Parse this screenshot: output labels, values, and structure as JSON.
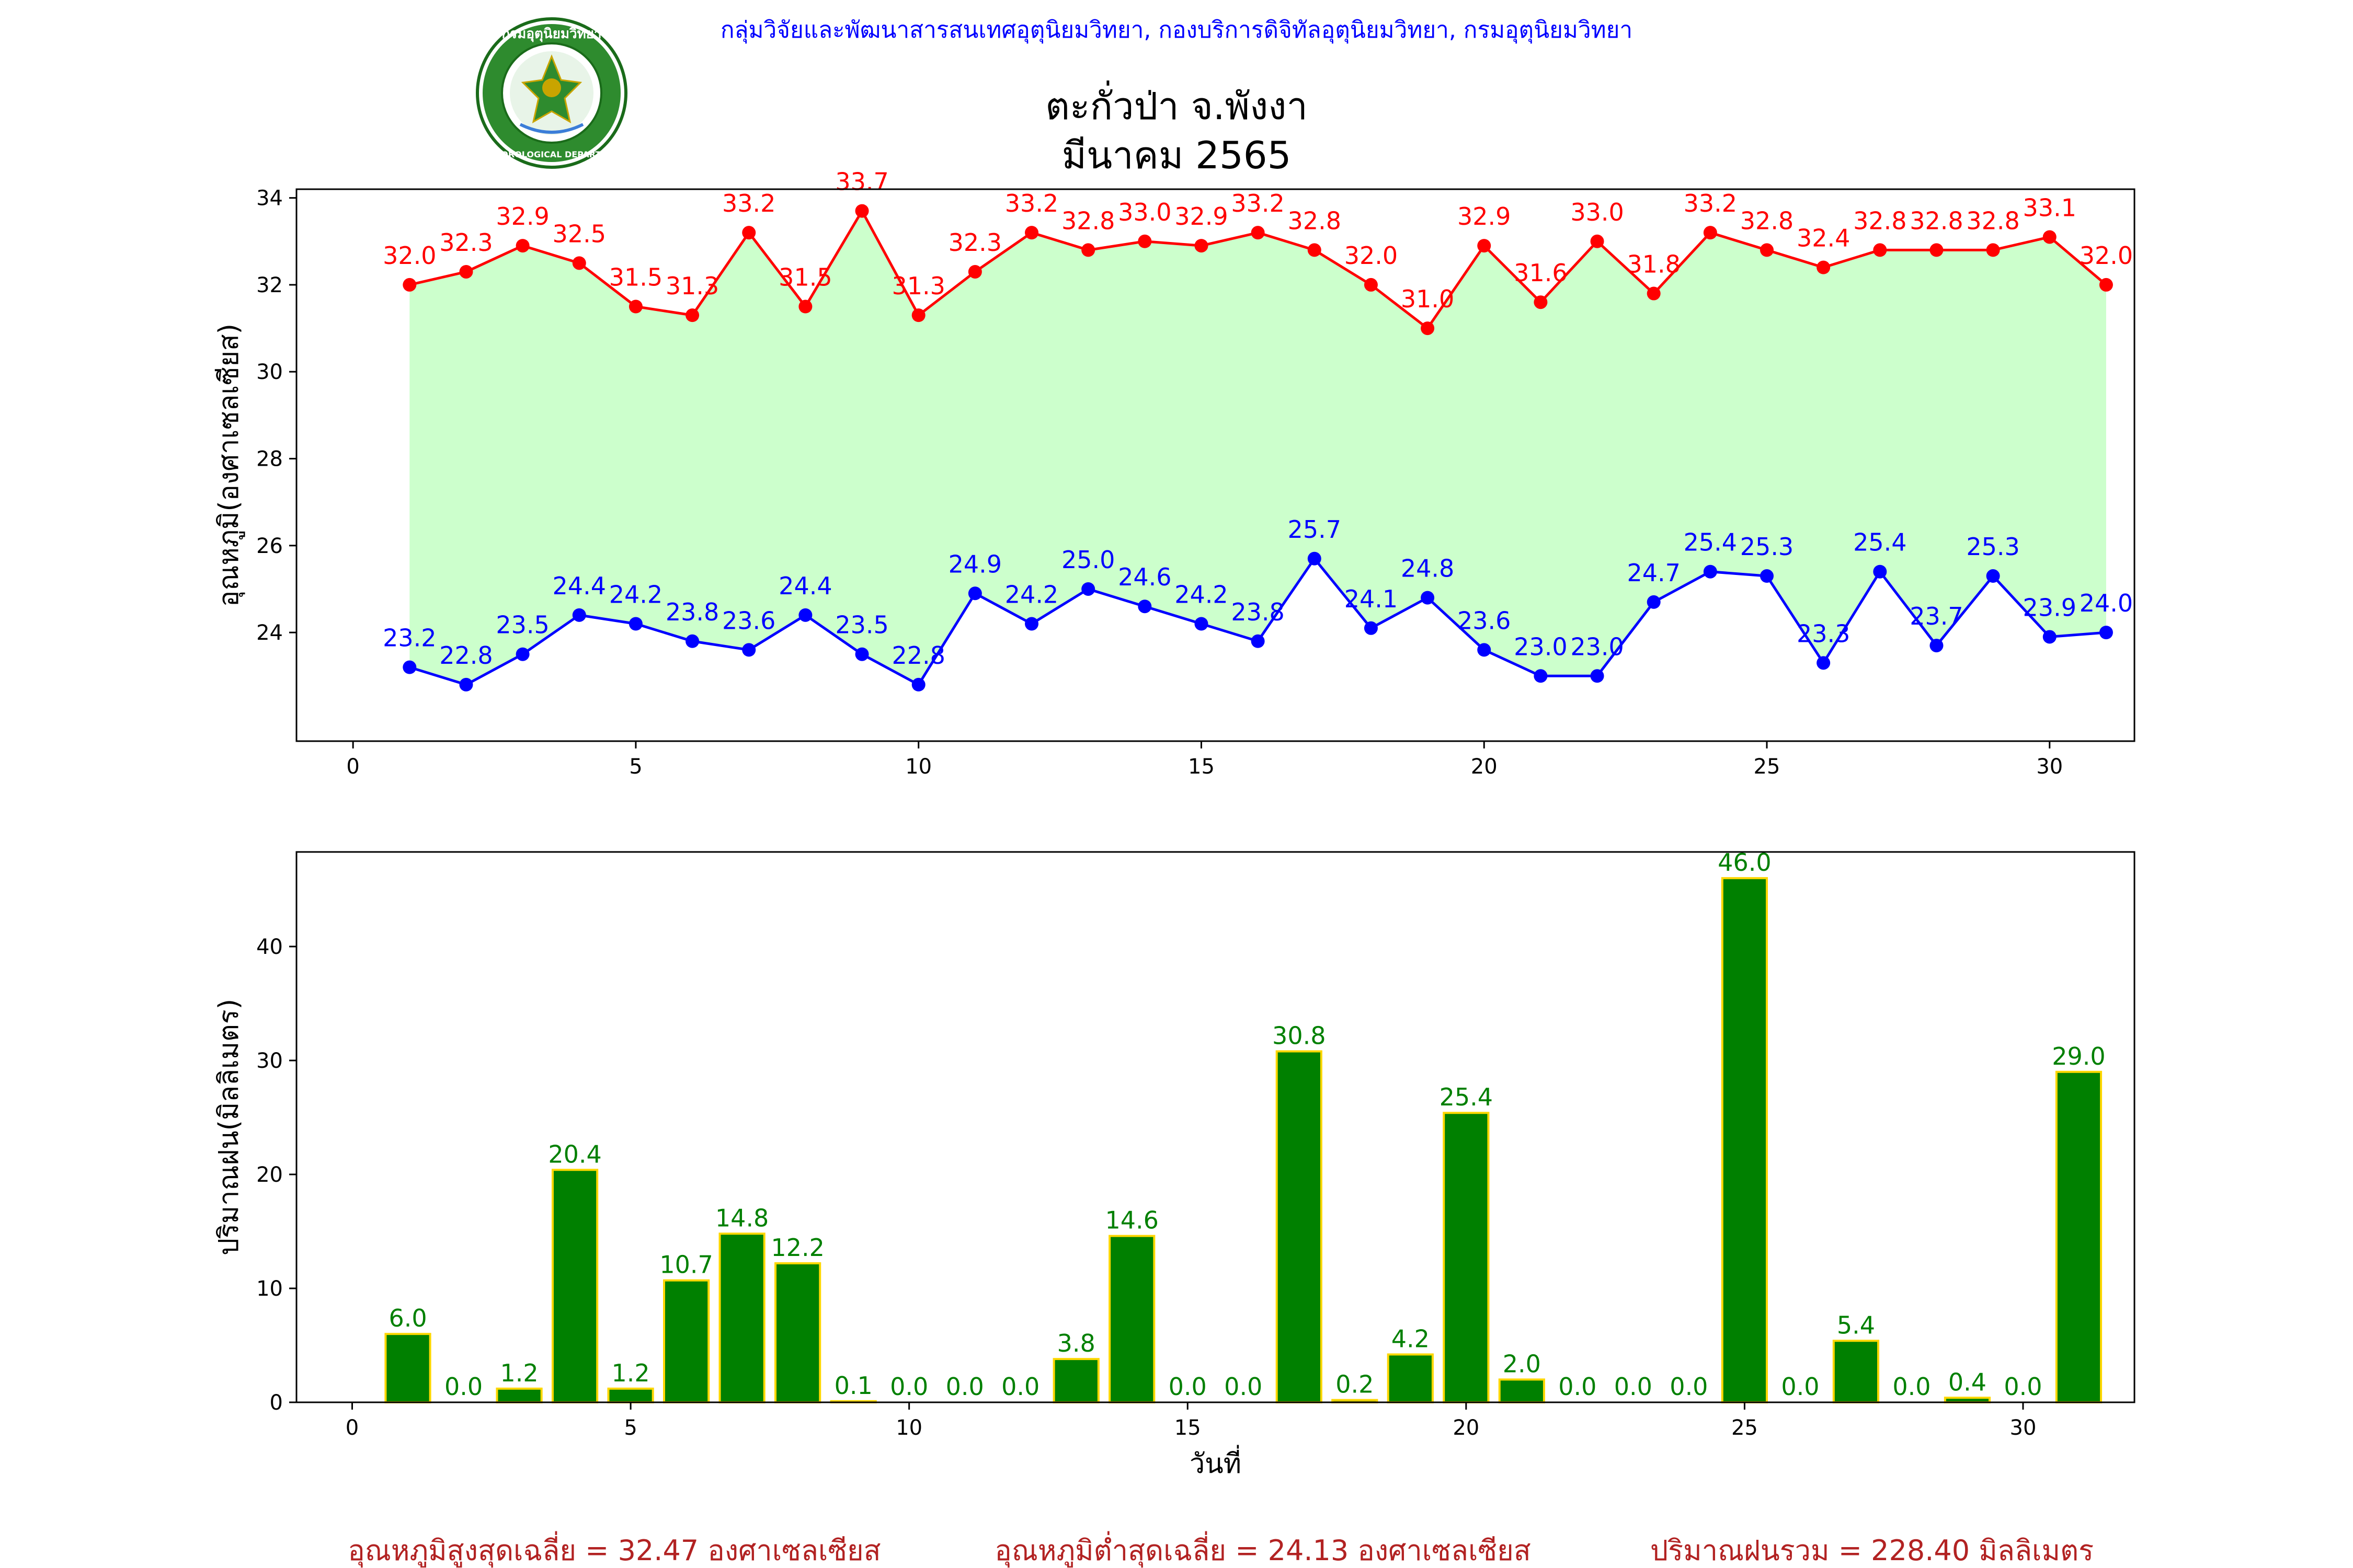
{
  "header": {
    "org_line": "กลุ่มวิจัยและพัฒนาสารสนเทศอุตุนิยมวิทยา, กองบริการดิจิทัลอุตุนิยมวิทยา, กรมอุตุนิยมวิทยา",
    "station": "ตะกั่วป่า จ.พังงา",
    "month": "มีนาคม 2565",
    "logo_top_text": "กรมอุตุนิยมวิทยา",
    "logo_bottom_text": "METEOROLOGICAL DEPARTMENT"
  },
  "chart_data": [
    {
      "type": "line",
      "ylabel": "อุณหภูมิ(องศาเซลเซียส)",
      "xlim": [
        -1,
        31.5
      ],
      "ylim": [
        21.5,
        34.2
      ],
      "xticks": [
        0,
        5,
        10,
        15,
        20,
        25,
        30
      ],
      "yticks": [
        24,
        26,
        28,
        30,
        32,
        34
      ],
      "fill_between_color": "#ccffcc",
      "x": [
        1,
        2,
        3,
        4,
        5,
        6,
        7,
        8,
        9,
        10,
        11,
        12,
        13,
        14,
        15,
        16,
        17,
        18,
        19,
        20,
        21,
        22,
        23,
        24,
        25,
        26,
        27,
        28,
        29,
        30,
        31
      ],
      "series": [
        {
          "key": "max",
          "color": "#ff0000",
          "values": [
            32.0,
            32.3,
            32.9,
            32.5,
            31.5,
            31.3,
            33.2,
            31.5,
            33.7,
            31.3,
            32.3,
            33.2,
            32.8,
            33.0,
            32.9,
            33.2,
            32.8,
            32.0,
            31.0,
            32.9,
            31.6,
            33.0,
            31.8,
            33.2,
            32.8,
            32.4,
            32.8,
            32.8,
            32.8,
            33.1,
            32.0
          ]
        },
        {
          "key": "min",
          "color": "#0000ff",
          "values": [
            23.2,
            22.8,
            23.5,
            24.4,
            24.2,
            23.8,
            23.6,
            24.4,
            23.5,
            22.8,
            24.9,
            24.2,
            25.0,
            24.6,
            24.2,
            23.8,
            25.7,
            24.1,
            24.8,
            23.6,
            23.0,
            23.0,
            24.7,
            25.4,
            25.3,
            23.3,
            25.4,
            23.7,
            25.3,
            23.9,
            24.0
          ]
        }
      ]
    },
    {
      "type": "bar",
      "xlabel": "วันที่",
      "ylabel": "ปริมาณฝน(มิลลิเมตร)",
      "xlim": [
        -1,
        32
      ],
      "ylim": [
        0,
        48.3
      ],
      "xticks": [
        0,
        5,
        10,
        15,
        20,
        25,
        30
      ],
      "yticks": [
        0,
        10,
        20,
        30,
        40
      ],
      "bar_color": "#008000",
      "edge_color": "#ffd700",
      "x": [
        1,
        2,
        3,
        4,
        5,
        6,
        7,
        8,
        9,
        10,
        11,
        12,
        13,
        14,
        15,
        16,
        17,
        18,
        19,
        20,
        21,
        22,
        23,
        24,
        25,
        26,
        27,
        28,
        29,
        30,
        31
      ],
      "values": [
        6.0,
        0.0,
        1.2,
        20.4,
        1.2,
        10.7,
        14.8,
        12.2,
        0.1,
        0.0,
        0.0,
        0.0,
        3.8,
        14.6,
        0.0,
        0.0,
        30.8,
        0.2,
        4.2,
        25.4,
        2.0,
        0.0,
        0.0,
        0.0,
        46.0,
        0.0,
        5.4,
        0.0,
        0.4,
        0.0,
        29.0
      ]
    }
  ],
  "footer": {
    "avg_max": "อุณหภูมิสูงสุดเฉลี่ย = 32.47 องศาเซลเซียส",
    "avg_min": "อุณหภูมิต่ำสุดเฉลี่ย = 24.13 องศาเซลเซียส",
    "total_rain": "ปริมาณฝนรวม = 228.40 มิลลิเมตร"
  },
  "colors": {
    "org_line": "#0000ff",
    "footer": "#b22222",
    "title": "#000000"
  }
}
